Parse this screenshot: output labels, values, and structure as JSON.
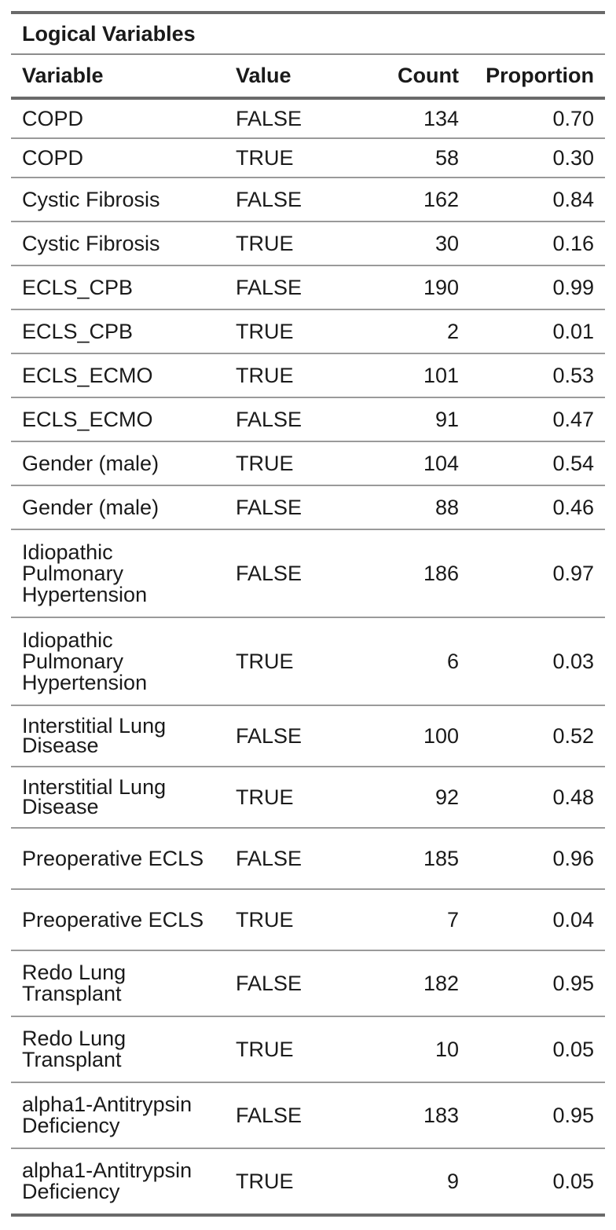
{
  "table": {
    "title": "Logical Variables",
    "headers": {
      "variable": "Variable",
      "value": "Value",
      "count": "Count",
      "proportion": "Proportion"
    },
    "rows": [
      {
        "variable": "COPD",
        "value": "FALSE",
        "count": "134",
        "proportion": "0.70"
      },
      {
        "variable": "COPD",
        "value": "TRUE",
        "count": "58",
        "proportion": "0.30"
      },
      {
        "variable": "Cystic Fibrosis",
        "value": "FALSE",
        "count": "162",
        "proportion": "0.84"
      },
      {
        "variable": "Cystic Fibrosis",
        "value": "TRUE",
        "count": "30",
        "proportion": "0.16"
      },
      {
        "variable": "ECLS_CPB",
        "value": "FALSE",
        "count": "190",
        "proportion": "0.99"
      },
      {
        "variable": "ECLS_CPB",
        "value": "TRUE",
        "count": "2",
        "proportion": "0.01"
      },
      {
        "variable": "ECLS_ECMO",
        "value": "TRUE",
        "count": "101",
        "proportion": "0.53"
      },
      {
        "variable": "ECLS_ECMO",
        "value": "FALSE",
        "count": "91",
        "proportion": "0.47"
      },
      {
        "variable": "Gender (male)",
        "value": "TRUE",
        "count": "104",
        "proportion": "0.54"
      },
      {
        "variable": "Gender (male)",
        "value": "FALSE",
        "count": "88",
        "proportion": "0.46"
      },
      {
        "variable": "Idiopathic Pulmonary Hypertension",
        "value": "FALSE",
        "count": "186",
        "proportion": "0.97"
      },
      {
        "variable": "Idiopathic Pulmonary Hypertension",
        "value": "TRUE",
        "count": "6",
        "proportion": "0.03"
      },
      {
        "variable": "Interstitial Lung Disease",
        "value": "FALSE",
        "count": "100",
        "proportion": "0.52"
      },
      {
        "variable": "Interstitial Lung Disease",
        "value": "TRUE",
        "count": "92",
        "proportion": "0.48"
      },
      {
        "variable": "Preoperative ECLS",
        "value": "FALSE",
        "count": "185",
        "proportion": "0.96"
      },
      {
        "variable": "Preoperative ECLS",
        "value": "TRUE",
        "count": "7",
        "proportion": "0.04"
      },
      {
        "variable": "Redo Lung Transplant",
        "value": "FALSE",
        "count": "182",
        "proportion": "0.95"
      },
      {
        "variable": "Redo Lung Transplant",
        "value": "TRUE",
        "count": "10",
        "proportion": "0.05"
      },
      {
        "variable": "alpha1-Antitrypsin Deficiency",
        "value": "FALSE",
        "count": "183",
        "proportion": "0.95"
      },
      {
        "variable": "alpha1-Antitrypsin Deficiency",
        "value": "TRUE",
        "count": "9",
        "proportion": "0.05"
      }
    ]
  }
}
